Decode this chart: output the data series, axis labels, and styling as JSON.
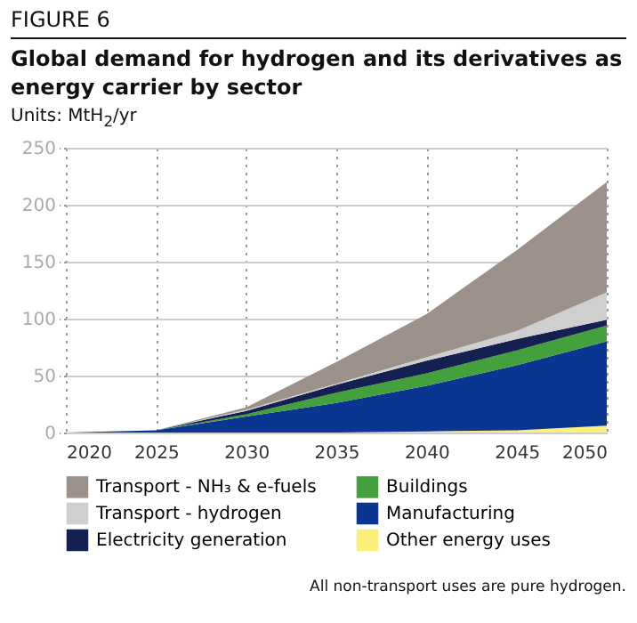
{
  "chart_data": {
    "type": "area",
    "stacked": true,
    "subtitle": "FIGURE 6",
    "title": "Global demand for hydrogen and its derivatives as energy carrier by sector",
    "ylabel": "Units: MtH$_{2}$/yr",
    "x": [
      2020,
      2025,
      2030,
      2035,
      2040,
      2045,
      2050
    ],
    "xlim": [
      2020,
      2050
    ],
    "xticks": [
      2020,
      2025,
      2030,
      2035,
      2040,
      2045,
      2050
    ],
    "ylim": [
      0,
      250
    ],
    "yticks": [
      0,
      50,
      100,
      150,
      200,
      250
    ],
    "grid": true,
    "legend": "bottom",
    "series": [
      {
        "name": "Other energy uses",
        "color": "#fdf07a",
        "values": [
          0,
          0,
          0,
          0,
          1,
          2,
          6
        ]
      },
      {
        "name": "Manufacturing",
        "color": "#0a3591",
        "values": [
          0,
          2,
          14,
          26,
          40,
          57,
          74
        ]
      },
      {
        "name": "Buildings",
        "color": "#43a03c",
        "values": [
          0,
          0,
          2,
          9,
          11,
          13,
          14
        ]
      },
      {
        "name": "Electricity generation",
        "color": "#14204f",
        "values": [
          0,
          0,
          3,
          7,
          11,
          10,
          5
        ]
      },
      {
        "name": "Transport - hydrogen",
        "color": "#d0cfcf",
        "values": [
          0,
          0,
          1,
          1,
          3,
          7,
          24
        ]
      },
      {
        "name": "Transport - NH₃ & e-fuels",
        "color": "#9b918a",
        "values": [
          0,
          0,
          2,
          19,
          38,
          71,
          97
        ]
      }
    ],
    "annotations": [
      "All non-transport uses are pure hydrogen."
    ]
  }
}
